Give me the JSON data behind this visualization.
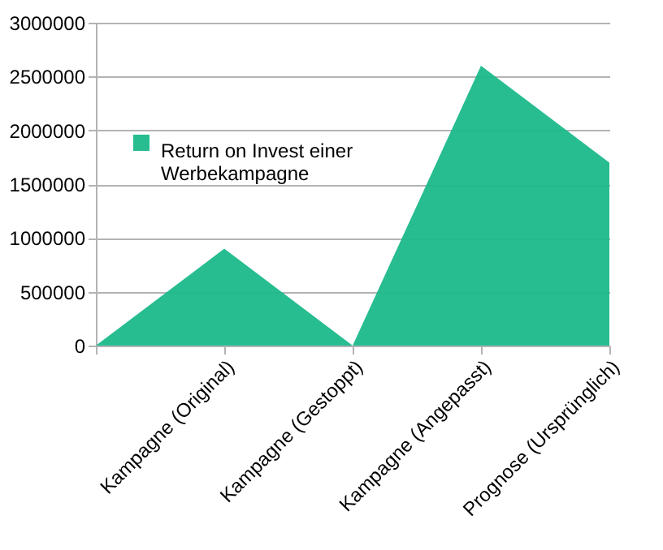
{
  "chart_data": {
    "type": "area",
    "categories": [
      null,
      "Kampagne (Original)",
      "Kampagne (Gestoppt)",
      "Kampagne (Angepasst)",
      "Prognose (Ursprünglich)"
    ],
    "series": [
      {
        "name": "Return on Invest einer Werbekampagne",
        "color": "#1bb98b",
        "values": [
          0,
          900000,
          0,
          2600000,
          1700000
        ]
      }
    ],
    "ylim": [
      0,
      3000000
    ],
    "yticks": [
      0,
      500000,
      1000000,
      1500000,
      2000000,
      2500000,
      3000000
    ],
    "grid": "y",
    "legend": "top left"
  }
}
